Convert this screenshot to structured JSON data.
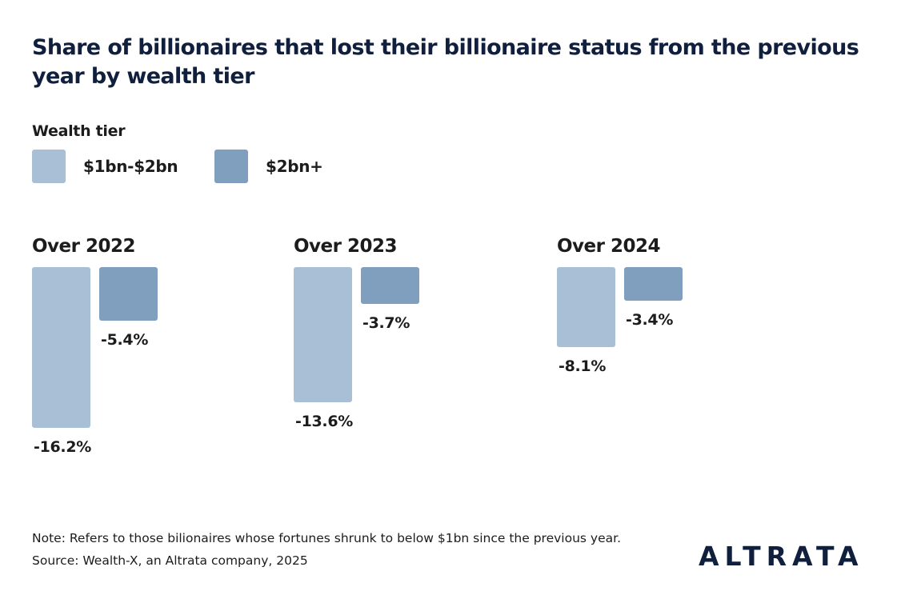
{
  "chart_data": {
    "type": "bar",
    "title": "Share of billionaires that lost their billionaire status from the previous year by wealth tier",
    "legend_title": "Wealth tier",
    "legend_placement": "top-left",
    "grid": false,
    "categories": [
      "Over 2022",
      "Over 2023",
      "Over 2024"
    ],
    "series": [
      {
        "name": "$1bn-$2bn",
        "color": "#a9bfd6",
        "values": [
          -16.2,
          -13.6,
          -8.1
        ],
        "labels": [
          "-16.2%",
          "-13.6%",
          "-8.1%"
        ]
      },
      {
        "name": "$2bn+",
        "color": "#809fbf",
        "values": [
          -5.4,
          -3.7,
          -3.4
        ],
        "labels": [
          "-5.4%",
          "-3.7%",
          "-3.4%"
        ]
      }
    ]
  },
  "footer": {
    "note": "Note: Refers to those bilionaires whose fortunes shrunk to below $1bn since the previous year.",
    "source": "Source: Wealth-X, an Altrata company, 2025",
    "logo": "ALTRATA"
  }
}
